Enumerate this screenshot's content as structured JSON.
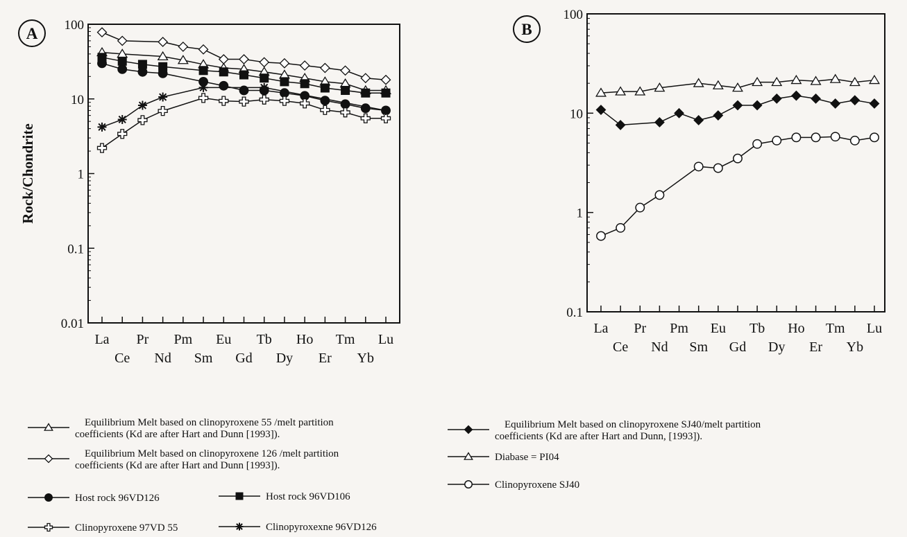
{
  "chart_data": [
    {
      "panel_label": "A",
      "type": "line",
      "y_scale": "log",
      "ylabel": "Rock/Chondrite",
      "ylim": [
        0.01,
        100
      ],
      "y_ticks": [
        {
          "value": 100,
          "label": "100"
        },
        {
          "value": 10,
          "label": "10"
        },
        {
          "value": 1,
          "label": "1"
        },
        {
          "value": 0.1,
          "label": "0.1"
        },
        {
          "value": 0.01,
          "label": "0.01"
        }
      ],
      "categories": [
        "La",
        "Ce",
        "Pr",
        "Nd",
        "Pm",
        "Sm",
        "Eu",
        "Gd",
        "Tb",
        "Dy",
        "Ho",
        "Er",
        "Tm",
        "Yb",
        "Lu"
      ],
      "series": [
        {
          "legend": "Equilibrium Melt based on clinopyroxene 55 /melt partition coefficients (Kd are after Hart  and Dunn [1993]).",
          "marker": "triangle-open",
          "x": [
            "La",
            "Ce",
            "Nd",
            "Pm",
            "Sm",
            "Eu",
            "Gd",
            "Tb",
            "Dy",
            "Ho",
            "Er",
            "Tm",
            "Yb",
            "Lu"
          ],
          "values": [
            42,
            40,
            37,
            33,
            29,
            26,
            25,
            23,
            21,
            19,
            17,
            16,
            13,
            13
          ]
        },
        {
          "legend": "Equilibrium Melt based on clinopyroxene 126 /melt partition coefficients (Kd are after Hart and Dunn [1993]).",
          "marker": "diamond-open",
          "x": [
            "La",
            "Ce",
            "Nd",
            "Pm",
            "Sm",
            "Eu",
            "Gd",
            "Tb",
            "Dy",
            "Ho",
            "Er",
            "Tm",
            "Yb",
            "Lu"
          ],
          "values": [
            78,
            60,
            58,
            50,
            46,
            34,
            34,
            31,
            30,
            28,
            26,
            24,
            19,
            18
          ]
        },
        {
          "legend": "Host rock 96VD126",
          "marker": "circle-filled",
          "x": [
            "La",
            "Ce",
            "Pr",
            "Nd",
            "Sm",
            "Eu",
            "Gd",
            "Tb",
            "Dy",
            "Ho",
            "Er",
            "Tm",
            "Yb",
            "Lu"
          ],
          "values": [
            30,
            25,
            23,
            22,
            17,
            15,
            13,
            13,
            12,
            11,
            9.5,
            8.5,
            7.5,
            7
          ]
        },
        {
          "legend": "Host rock 96VD106",
          "marker": "square-filled",
          "x": [
            "La",
            "Ce",
            "Pr",
            "Nd",
            "Sm",
            "Eu",
            "Gd",
            "Tb",
            "Dy",
            "Ho",
            "Er",
            "Tm",
            "Yb",
            "Lu"
          ],
          "values": [
            36,
            32,
            29,
            27,
            24,
            23,
            21,
            19,
            17,
            16,
            14,
            13,
            12,
            12
          ]
        },
        {
          "legend": "Clinopyroxene 97VD 55",
          "marker": "cross-open",
          "x": [
            "La",
            "Ce",
            "Pr",
            "Nd",
            "Sm",
            "Eu",
            "Gd",
            "Tb",
            "Dy",
            "Ho",
            "Er",
            "Tm",
            "Yb",
            "Lu"
          ],
          "values": [
            2.2,
            3.4,
            5.2,
            6.9,
            10.3,
            9.4,
            9.2,
            9.8,
            9.4,
            8.7,
            7.1,
            6.6,
            5.5,
            5.5
          ]
        },
        {
          "legend": "Clinopyroxexne 96VD126",
          "marker": "asterisk",
          "x": [
            "La",
            "Ce",
            "Pr",
            "Nd",
            "Sm",
            "Tb",
            "Lu"
          ],
          "values": [
            4.2,
            5.3,
            8.2,
            10.6,
            14.2,
            14.2,
            7
          ]
        }
      ]
    },
    {
      "panel_label": "B",
      "type": "line",
      "y_scale": "log",
      "ylabel": "",
      "ylim": [
        0.1,
        100
      ],
      "y_ticks": [
        {
          "value": 100,
          "label": "100"
        },
        {
          "value": 10,
          "label": "10"
        },
        {
          "value": 1,
          "label": "1"
        },
        {
          "value": 0.1,
          "label": "0.1"
        }
      ],
      "categories": [
        "La",
        "Ce",
        "Pr",
        "Nd",
        "Pm",
        "Sm",
        "Eu",
        "Gd",
        "Tb",
        "Dy",
        "Ho",
        "Er",
        "Tm",
        "Yb",
        "Lu"
      ],
      "series": [
        {
          "legend": "Equilibrium Melt based on clinopyroxene SJ40/melt partition coefficients (Kd are after Hart and Dunn, [1993]).",
          "marker": "diamond-filled",
          "x": [
            "La",
            "Ce",
            "Nd",
            "Pm",
            "Sm",
            "Eu",
            "Gd",
            "Tb",
            "Dy",
            "Ho",
            "Er",
            "Tm",
            "Yb",
            "Lu"
          ],
          "values": [
            10.8,
            7.6,
            8.1,
            10,
            8.5,
            9.5,
            12,
            12,
            14,
            15,
            14,
            12.5,
            13.5,
            12.5
          ]
        },
        {
          "legend": "Diabase = PI04",
          "marker": "triangle-open",
          "x": [
            "La",
            "Ce",
            "Pr",
            "Nd",
            "Sm",
            "Eu",
            "Gd",
            "Tb",
            "Dy",
            "Ho",
            "Er",
            "Tm",
            "Yb",
            "Lu"
          ],
          "values": [
            16,
            16.5,
            16.5,
            18,
            20,
            19,
            18,
            20.5,
            20.5,
            21.5,
            21,
            22,
            20.5,
            21.5
          ]
        },
        {
          "legend": "Clinopyroxene  SJ40",
          "marker": "circle-open",
          "x": [
            "La",
            "Ce",
            "Pr",
            "Nd",
            "Sm",
            "Eu",
            "Gd",
            "Tb",
            "Dy",
            "Ho",
            "Er",
            "Tm",
            "Yb",
            "Lu"
          ],
          "values": [
            0.58,
            0.7,
            1.12,
            1.5,
            2.9,
            2.8,
            3.5,
            4.9,
            5.3,
            5.7,
            5.7,
            5.8,
            5.3,
            5.7
          ]
        }
      ]
    }
  ],
  "legend_layout": {
    "A": [
      [
        0,
        1
      ],
      [
        2,
        3
      ],
      [
        4,
        5
      ]
    ],
    "B": [
      [
        0
      ],
      [
        1
      ],
      [
        2
      ]
    ]
  }
}
